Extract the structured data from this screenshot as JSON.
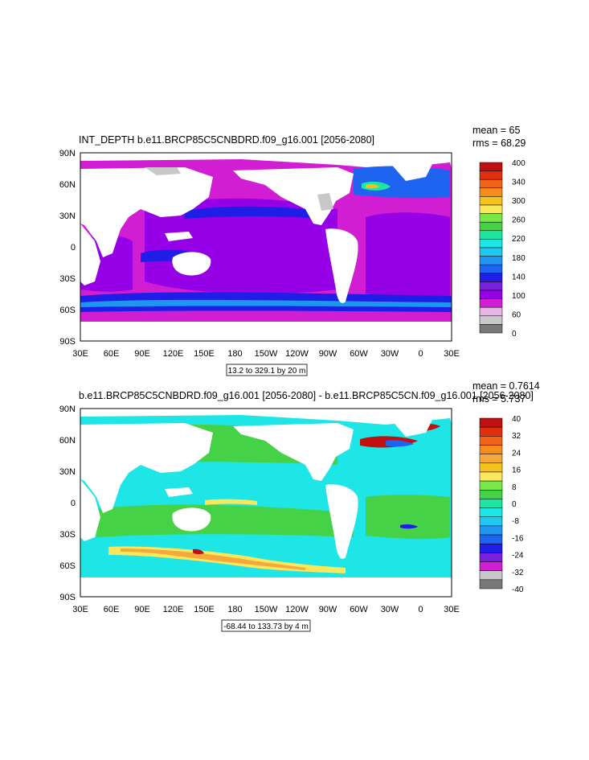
{
  "chart_data": [
    {
      "type": "heatmap",
      "title": "INT_DEPTH b.e11.BRCP85C5CNBDRD.f09_g16.001 [2056-2080]",
      "stats": [
        "mean = 65",
        "rms = 68.29"
      ],
      "contour_info": "13.2 to 329.1 by 20 m",
      "x_ticks": [
        "30E",
        "60E",
        "90E",
        "120E",
        "150E",
        "180",
        "150W",
        "120W",
        "90W",
        "60W",
        "30W",
        "0",
        "30E"
      ],
      "y_ticks": [
        "90N",
        "60N",
        "30N",
        "0",
        "30S",
        "60S",
        "90S"
      ],
      "xlim": [
        30,
        390
      ],
      "ylim": [
        -90,
        90
      ],
      "colorbar": {
        "labels": [
          "400",
          "340",
          "300",
          "260",
          "220",
          "180",
          "140",
          "100",
          "60",
          "0"
        ],
        "colors": [
          "#c01010",
          "#e03010",
          "#f06418",
          "#f58c1c",
          "#f5c21e",
          "#fae85a",
          "#78e846",
          "#46d246",
          "#1ee6a0",
          "#1ee6e6",
          "#1ec8f0",
          "#1e96f0",
          "#1e64f0",
          "#1e1ee6",
          "#7a1ee0",
          "#9600e6",
          "#d21ed2",
          "#e6b4e6",
          "#c8c8c8",
          "#787878"
        ]
      }
    },
    {
      "type": "heatmap",
      "title": "b.e11.BRCP85C5CNBDRD.f09_g16.001 [2056-2080] - b.e11.BRCP85C5CN.f09_g16.001 [2056-2080]",
      "stats": [
        "mean = 0.7614",
        "rms = 5.737"
      ],
      "contour_info": "-68.44 to 133.73 by 4 m",
      "x_ticks": [
        "30E",
        "60E",
        "90E",
        "120E",
        "150E",
        "180",
        "150W",
        "120W",
        "90W",
        "60W",
        "30W",
        "0",
        "30E"
      ],
      "y_ticks": [
        "90N",
        "60N",
        "30N",
        "0",
        "30S",
        "60S",
        "90S"
      ],
      "xlim": [
        30,
        390
      ],
      "ylim": [
        -90,
        90
      ],
      "colorbar": {
        "labels": [
          "40",
          "32",
          "24",
          "16",
          "8",
          "0",
          "-8",
          "-16",
          "-24",
          "-32",
          "-40"
        ],
        "colors": [
          "#c01010",
          "#e03010",
          "#f06418",
          "#f58c1c",
          "#f5a83c",
          "#f5c21e",
          "#fae85a",
          "#78e846",
          "#46d246",
          "#1ee6a0",
          "#1ee6e6",
          "#1ec8f0",
          "#1e96f0",
          "#1e64f0",
          "#1e1ee6",
          "#7a1ee0",
          "#d21ed2",
          "#c8c8c8",
          "#787878"
        ]
      }
    }
  ]
}
